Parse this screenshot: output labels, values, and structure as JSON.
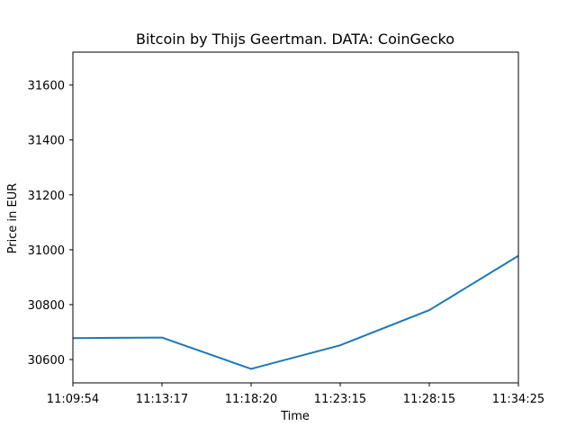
{
  "chart_data": {
    "type": "line",
    "title": "Bitcoin by Thijs Geertman. DATA: CoinGecko",
    "xlabel": "Time",
    "ylabel": "Price in EUR",
    "categories": [
      "11:09:54",
      "11:13:17",
      "11:18:20",
      "11:23:15",
      "11:28:15",
      "11:34:25"
    ],
    "series": [
      {
        "values": [
          30678,
          30680,
          30566,
          30652,
          30780,
          30978
        ]
      }
    ],
    "ylim": [
      30515,
      31720
    ],
    "yticks": [
      30600,
      30800,
      31000,
      31200,
      31400,
      31600
    ],
    "grid": false,
    "line_color": "#1f77b4"
  }
}
